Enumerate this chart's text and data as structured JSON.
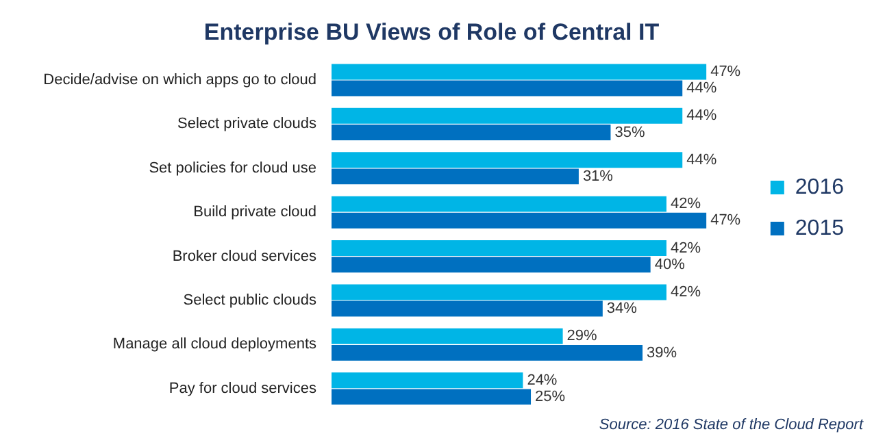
{
  "chart_data": {
    "type": "bar",
    "orientation": "horizontal",
    "title": "Enterprise BU Views of Role of Central IT",
    "categories": [
      "Decide/advise on which apps go to cloud",
      "Select private clouds",
      "Set policies for cloud use",
      "Build private cloud",
      "Broker cloud services",
      "Select public clouds",
      "Manage all cloud deployments",
      "Pay for cloud services"
    ],
    "series": [
      {
        "name": "2016",
        "color": "#00b5e6",
        "values": [
          47,
          44,
          44,
          42,
          42,
          42,
          29,
          24
        ],
        "value_labels": [
          "47%",
          "44%",
          "44%",
          "42%",
          "42%",
          "42%",
          "29%",
          "24%"
        ]
      },
      {
        "name": "2015",
        "color": "#0070c0",
        "values": [
          44,
          35,
          31,
          47,
          40,
          34,
          39,
          25
        ],
        "value_labels": [
          "44%",
          "35%",
          "31%",
          "47%",
          "40%",
          "34%",
          "39%",
          "25%"
        ]
      }
    ],
    "legend": "right",
    "tick_labels": "y",
    "annotations": [
      "Source: 2016 State of the Cloud Report"
    ]
  }
}
